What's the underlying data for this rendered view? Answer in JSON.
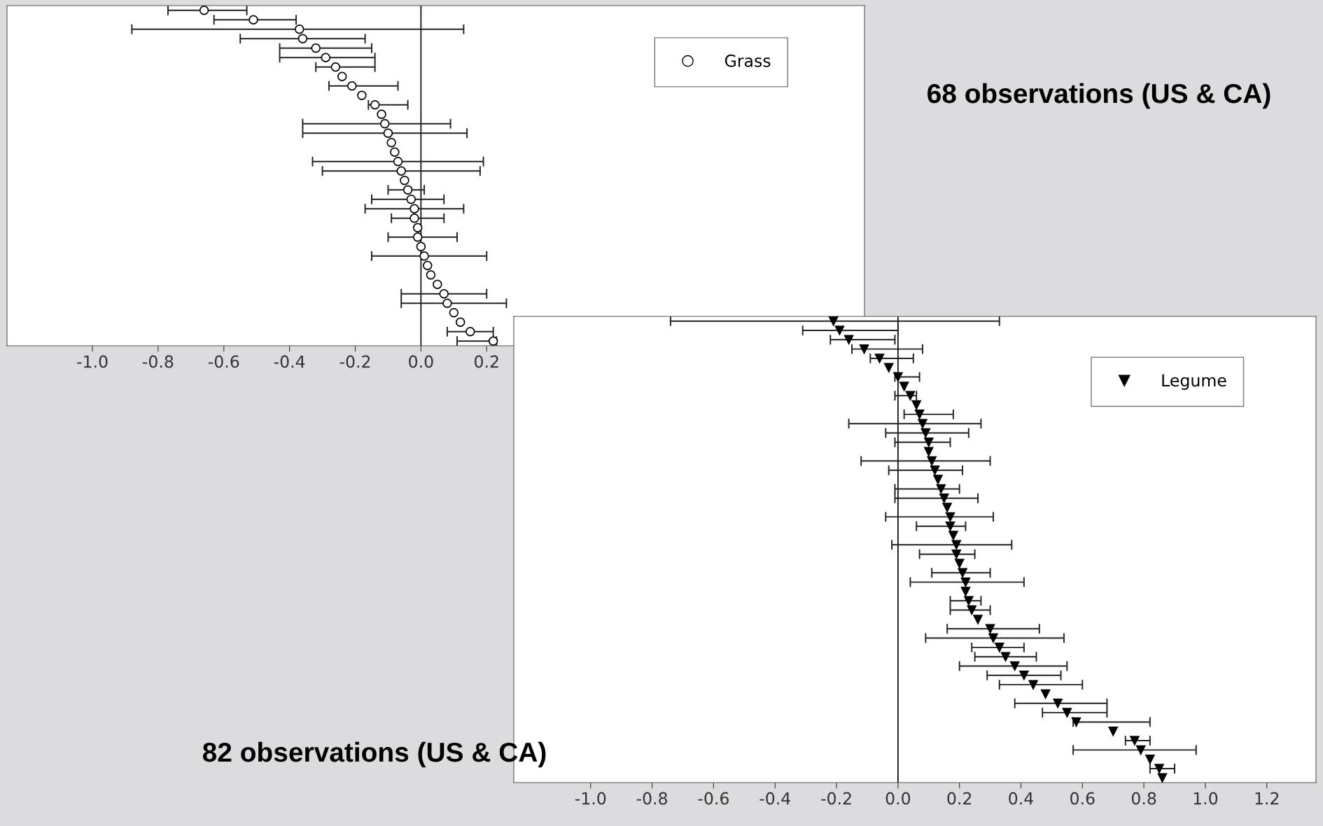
{
  "chart_data": [
    {
      "type": "scatter",
      "orientation": "horizontal",
      "categories": [
        null,
        null,
        null,
        null,
        null,
        null,
        null,
        null,
        null,
        null,
        null,
        null,
        null,
        null,
        null,
        null,
        null,
        null,
        null,
        null,
        null,
        null,
        null,
        null,
        null,
        null,
        null,
        null,
        null,
        null,
        null,
        null,
        null,
        null,
        null,
        null
      ],
      "series": [
        {
          "name": "Grass",
          "color": "#ffffff",
          "values": [
            -0.66,
            -0.51,
            -0.37,
            -0.36,
            -0.32,
            -0.29,
            -0.26,
            -0.24,
            -0.21,
            -0.18,
            -0.14,
            -0.12,
            -0.11,
            -0.1,
            -0.09,
            -0.08,
            -0.07,
            -0.06,
            -0.05,
            -0.04,
            -0.03,
            -0.02,
            -0.02,
            -0.01,
            -0.01,
            0.0,
            0.01,
            0.02,
            0.03,
            0.05,
            0.07,
            0.08,
            0.1,
            0.12,
            0.15,
            0.22
          ],
          "errors": [
            [
              -0.77,
              -0.53
            ],
            [
              -0.63,
              -0.38
            ],
            [
              -0.88,
              0.13
            ],
            [
              -0.55,
              -0.17
            ],
            [
              -0.43,
              -0.15
            ],
            [
              -0.43,
              -0.14
            ],
            [
              -0.32,
              -0.14
            ],
            null,
            [
              -0.28,
              -0.07
            ],
            null,
            [
              -0.16,
              -0.04
            ],
            null,
            [
              -0.36,
              0.09
            ],
            [
              -0.36,
              0.14
            ],
            null,
            null,
            [
              -0.33,
              0.19
            ],
            [
              -0.3,
              0.18
            ],
            null,
            [
              -0.1,
              0.01
            ],
            [
              -0.15,
              0.07
            ],
            [
              -0.17,
              0.13
            ],
            [
              -0.09,
              0.07
            ],
            null,
            [
              -0.1,
              0.11
            ],
            null,
            [
              -0.15,
              0.2
            ],
            null,
            null,
            null,
            [
              -0.06,
              0.2
            ],
            [
              -0.06,
              0.26
            ],
            null,
            null,
            [
              0.08,
              0.22
            ],
            [
              0.11,
              0.23
            ]
          ]
        }
      ],
      "xlim": [
        -1.26,
        1.35
      ],
      "xticks": [
        {
          "value": -1.0,
          "label": "-1.0"
        },
        {
          "value": -0.8,
          "label": "-0.8"
        },
        {
          "value": -0.6,
          "label": "-0.6"
        },
        {
          "value": -0.4,
          "label": "-0.4"
        },
        {
          "value": -0.2,
          "label": "-0.2"
        },
        {
          "value": 0.0,
          "label": "0.0"
        },
        {
          "value": 0.2,
          "label": "0.2"
        }
      ],
      "ref_lines": [
        {
          "axis": "x",
          "value": 0,
          "color": "#000000"
        }
      ],
      "marker": "circle",
      "legend": "top right",
      "tick_labels": "x",
      "annotations": [
        "68 observations (US & CA)"
      ]
    },
    {
      "type": "scatter",
      "orientation": "horizontal",
      "categories": [
        null,
        null,
        null,
        null,
        null,
        null,
        null,
        null,
        null,
        null,
        null,
        null,
        null,
        null,
        null,
        null,
        null,
        null,
        null,
        null,
        null,
        null,
        null,
        null,
        null,
        null,
        null,
        null,
        null,
        null,
        null,
        null,
        null,
        null,
        null,
        null,
        null,
        null,
        null,
        null,
        null,
        null,
        null,
        null,
        null,
        null,
        null,
        null,
        null,
        null
      ],
      "series": [
        {
          "name": "Legume",
          "color": "#000000",
          "values": [
            -0.21,
            -0.19,
            -0.16,
            -0.11,
            -0.06,
            -0.03,
            0.0,
            0.02,
            0.04,
            0.06,
            0.07,
            0.08,
            0.09,
            0.1,
            0.1,
            0.11,
            0.12,
            0.13,
            0.14,
            0.15,
            0.16,
            0.17,
            0.17,
            0.18,
            0.19,
            0.19,
            0.2,
            0.21,
            0.22,
            0.22,
            0.23,
            0.24,
            0.26,
            0.3,
            0.31,
            0.33,
            0.35,
            0.38,
            0.41,
            0.44,
            0.48,
            0.52,
            0.55,
            0.58,
            0.7,
            0.77,
            0.79,
            0.82,
            0.85,
            0.86
          ],
          "errors": [
            [
              -0.74,
              0.33
            ],
            [
              -0.31,
              0.0
            ],
            [
              -0.22,
              -0.01
            ],
            [
              -0.15,
              0.08
            ],
            [
              -0.09,
              0.05
            ],
            null,
            [
              -0.01,
              0.07
            ],
            null,
            [
              -0.01,
              0.06
            ],
            null,
            [
              0.02,
              0.18
            ],
            [
              -0.16,
              0.27
            ],
            [
              -0.04,
              0.23
            ],
            [
              -0.01,
              0.17
            ],
            null,
            [
              -0.12,
              0.3
            ],
            [
              -0.03,
              0.21
            ],
            null,
            [
              -0.01,
              0.2
            ],
            [
              -0.01,
              0.26
            ],
            null,
            [
              -0.04,
              0.31
            ],
            [
              0.06,
              0.22
            ],
            null,
            [
              -0.02,
              0.37
            ],
            [
              0.07,
              0.25
            ],
            null,
            [
              0.11,
              0.3
            ],
            [
              0.04,
              0.41
            ],
            null,
            [
              0.17,
              0.27
            ],
            [
              0.17,
              0.3
            ],
            null,
            [
              0.16,
              0.46
            ],
            [
              0.09,
              0.54
            ],
            [
              0.24,
              0.41
            ],
            [
              0.25,
              0.45
            ],
            [
              0.2,
              0.55
            ],
            [
              0.29,
              0.53
            ],
            [
              0.33,
              0.6
            ],
            null,
            [
              0.38,
              0.68
            ],
            [
              0.47,
              0.68
            ],
            [
              0.57,
              0.82
            ],
            null,
            [
              0.74,
              0.82
            ],
            [
              0.57,
              0.97
            ],
            null,
            [
              0.82,
              0.9
            ],
            null
          ]
        }
      ],
      "xlim": [
        -1.25,
        1.36
      ],
      "xticks": [
        {
          "value": -1.0,
          "label": "-1.0"
        },
        {
          "value": -0.8,
          "label": "-0.8"
        },
        {
          "value": -0.6,
          "label": "-0.6"
        },
        {
          "value": -0.4,
          "label": "-0.4"
        },
        {
          "value": -0.2,
          "label": "-0.2"
        },
        {
          "value": 0.0,
          "label": "0.0"
        },
        {
          "value": 0.2,
          "label": "0.2"
        },
        {
          "value": 0.4,
          "label": "0.4"
        },
        {
          "value": 0.6,
          "label": "0.6"
        },
        {
          "value": 0.8,
          "label": "0.8"
        },
        {
          "value": 1.0,
          "label": "1.0"
        },
        {
          "value": 1.2,
          "label": "1.2"
        }
      ],
      "ref_lines": [
        {
          "axis": "x",
          "value": 0,
          "color": "#000000"
        }
      ],
      "marker": "triangle",
      "legend": "top right",
      "tick_labels": "x",
      "annotations": [
        "82 observations (US & CA)"
      ]
    }
  ]
}
